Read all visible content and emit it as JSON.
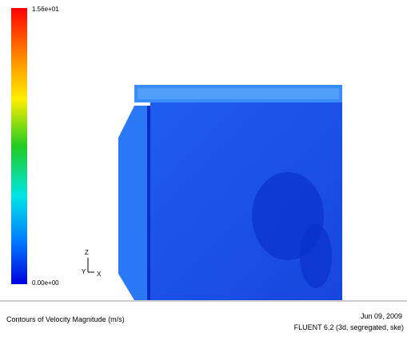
{
  "colorbar": {
    "max_label": "1.56e+01",
    "min_label": "0.00e+00"
  },
  "axes": {
    "z": "Z",
    "y": "Y",
    "x": "X"
  },
  "footer": {
    "caption": "Contours of Velocity Magnitude (m/s)",
    "date": "Jun 09, 2009",
    "solver": "FLUENT 6.2 (3d, segregated, ske)"
  }
}
